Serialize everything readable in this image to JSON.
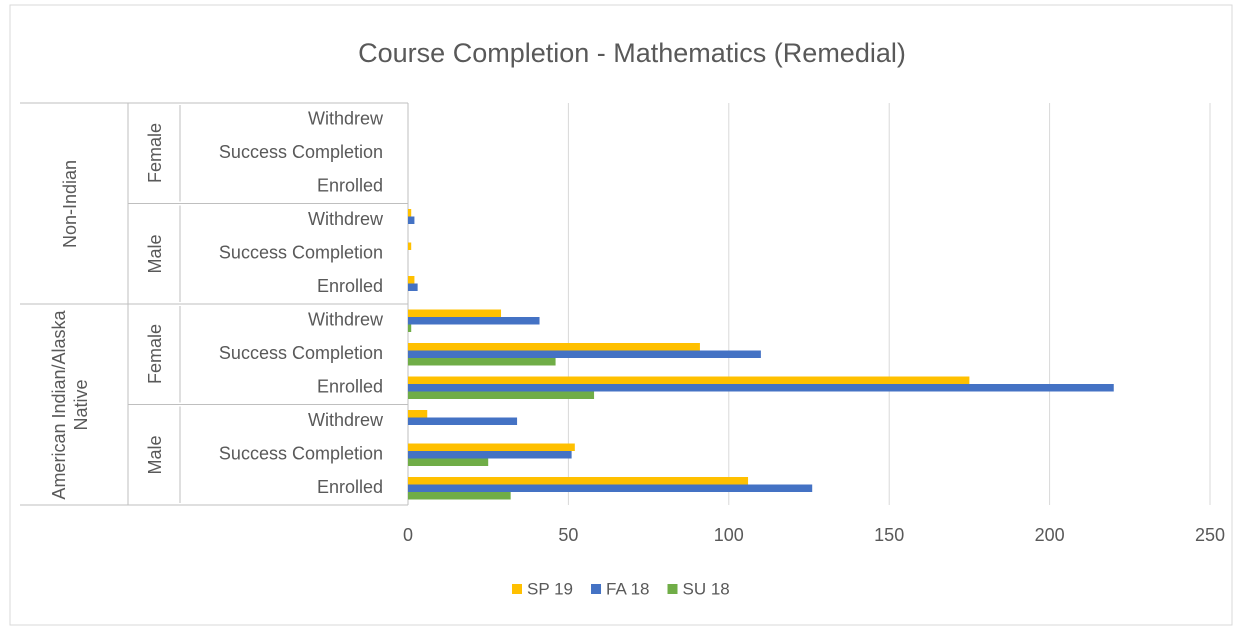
{
  "chart_data": {
    "type": "bar",
    "orientation": "horizontal",
    "title": "Course Completion - Mathematics (Remedial)",
    "categories": [
      "Enrolled",
      "Success Completion",
      "Withdrew",
      "Enrolled",
      "Success Completion",
      "Withdrew",
      "Enrolled",
      "Success Completion",
      "Withdrew",
      "Enrolled",
      "Success Completion",
      "Withdrew"
    ],
    "category_groups": [
      {
        "name": "American Indian/Alaska Native",
        "subgroups": [
          "Male",
          "Female"
        ]
      },
      {
        "name": "Non-Indian",
        "subgroups": [
          "Male",
          "Female"
        ]
      }
    ],
    "series": [
      {
        "name": "SP 19",
        "color": "#ffc000",
        "values": [
          106,
          52,
          6,
          175,
          91,
          29,
          2,
          1,
          1,
          0,
          0,
          0
        ]
      },
      {
        "name": "FA 18",
        "color": "#4472c4",
        "values": [
          126,
          51,
          34,
          220,
          110,
          41,
          3,
          0,
          2,
          0,
          0,
          0
        ]
      },
      {
        "name": "SU 18",
        "color": "#70ad47",
        "values": [
          32,
          25,
          0,
          58,
          46,
          1,
          0,
          0,
          0,
          0,
          0,
          0
        ]
      }
    ],
    "xlim": [
      0,
      250
    ],
    "xticks": [
      0,
      50,
      100,
      150,
      200,
      250
    ],
    "grid": true,
    "legend": "bottom"
  }
}
